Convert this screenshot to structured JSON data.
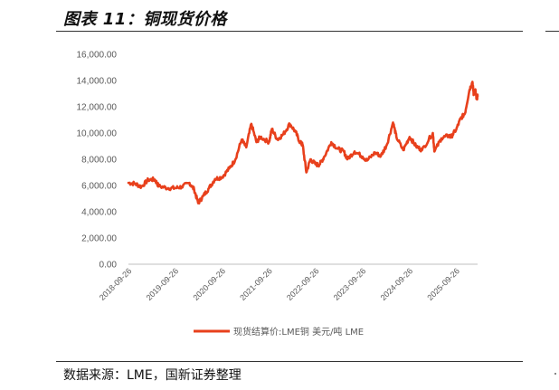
{
  "header": {
    "title": "图表 11：铜现货价格"
  },
  "footer": {
    "source": "数据来源：LME，国新证券整理"
  },
  "colors": {
    "series": "#E8401C",
    "axis": "#BFBFBF",
    "text": "#595959"
  },
  "chart_data": {
    "type": "line",
    "title": "",
    "xlabel": "",
    "ylabel": "",
    "ylim": [
      0,
      16000
    ],
    "yticks": [
      "0.00",
      "2,000.00",
      "4,000.00",
      "6,000.00",
      "8,000.00",
      "10,000.00",
      "12,000.00",
      "14,000.00",
      "16,000.00"
    ],
    "xticks": [
      "2018-09-26",
      "2019-09-26",
      "2020-09-26",
      "2021-09-26",
      "2022-09-26",
      "2023-09-26",
      "2024-09-26",
      "2025-09-26"
    ],
    "grid": false,
    "legend_position": "bottom",
    "series": [
      {
        "name": "现货结算价:LME铜 美元/吨 LME",
        "points": [
          [
            "2018-09-26",
            6200
          ],
          [
            "2018-11-15",
            6150
          ],
          [
            "2019-01-05",
            5900
          ],
          [
            "2019-03-01",
            6450
          ],
          [
            "2019-04-20",
            6450
          ],
          [
            "2019-05-20",
            5950
          ],
          [
            "2019-08-01",
            5800
          ],
          [
            "2019-09-26",
            5800
          ],
          [
            "2019-11-15",
            5900
          ],
          [
            "2020-01-15",
            6200
          ],
          [
            "2020-02-20",
            5700
          ],
          [
            "2020-03-23",
            4650
          ],
          [
            "2020-05-01",
            5200
          ],
          [
            "2020-06-15",
            5800
          ],
          [
            "2020-08-01",
            6500
          ],
          [
            "2020-09-26",
            6650
          ],
          [
            "2020-11-20",
            7300
          ],
          [
            "2021-01-05",
            7950
          ],
          [
            "2021-02-25",
            9500
          ],
          [
            "2021-04-01",
            8900
          ],
          [
            "2021-05-11",
            10700
          ],
          [
            "2021-06-20",
            9300
          ],
          [
            "2021-07-20",
            9700
          ],
          [
            "2021-09-26",
            9300
          ],
          [
            "2021-10-18",
            10300
          ],
          [
            "2021-12-01",
            9500
          ],
          [
            "2022-01-15",
            9900
          ],
          [
            "2022-03-07",
            10700
          ],
          [
            "2022-04-20",
            10100
          ],
          [
            "2022-05-25",
            9300
          ],
          [
            "2022-06-15",
            9100
          ],
          [
            "2022-07-14",
            7000
          ],
          [
            "2022-08-15",
            8000
          ],
          [
            "2022-09-26",
            7600
          ],
          [
            "2022-10-25",
            7600
          ],
          [
            "2022-12-01",
            8200
          ],
          [
            "2023-01-25",
            9300
          ],
          [
            "2023-03-15",
            8800
          ],
          [
            "2023-05-01",
            8600
          ],
          [
            "2023-05-31",
            8000
          ],
          [
            "2023-07-25",
            8600
          ],
          [
            "2023-09-26",
            8200
          ],
          [
            "2023-10-30",
            7900
          ],
          [
            "2023-12-31",
            8500
          ],
          [
            "2024-02-15",
            8250
          ],
          [
            "2024-04-01",
            9100
          ],
          [
            "2024-05-20",
            10800
          ],
          [
            "2024-06-15",
            9700
          ],
          [
            "2024-08-07",
            8700
          ],
          [
            "2024-09-26",
            9700
          ],
          [
            "2024-11-15",
            9000
          ],
          [
            "2025-01-01",
            8700
          ],
          [
            "2025-03-26",
            10000
          ],
          [
            "2025-04-08",
            8600
          ],
          [
            "2025-06-01",
            9600
          ],
          [
            "2025-07-25",
            9800
          ],
          [
            "2025-08-15",
            9700
          ],
          [
            "2025-09-26",
            10300
          ],
          [
            "2025-10-29",
            11100
          ],
          [
            "2025-12-01",
            11500
          ],
          [
            "2026-01-06",
            13300
          ],
          [
            "2026-01-29",
            13900
          ],
          [
            "2026-02-08",
            12900
          ],
          [
            "2026-02-20",
            13300
          ],
          [
            "2026-03-01",
            12600
          ],
          [
            "2026-03-10",
            12800
          ]
        ]
      }
    ]
  }
}
